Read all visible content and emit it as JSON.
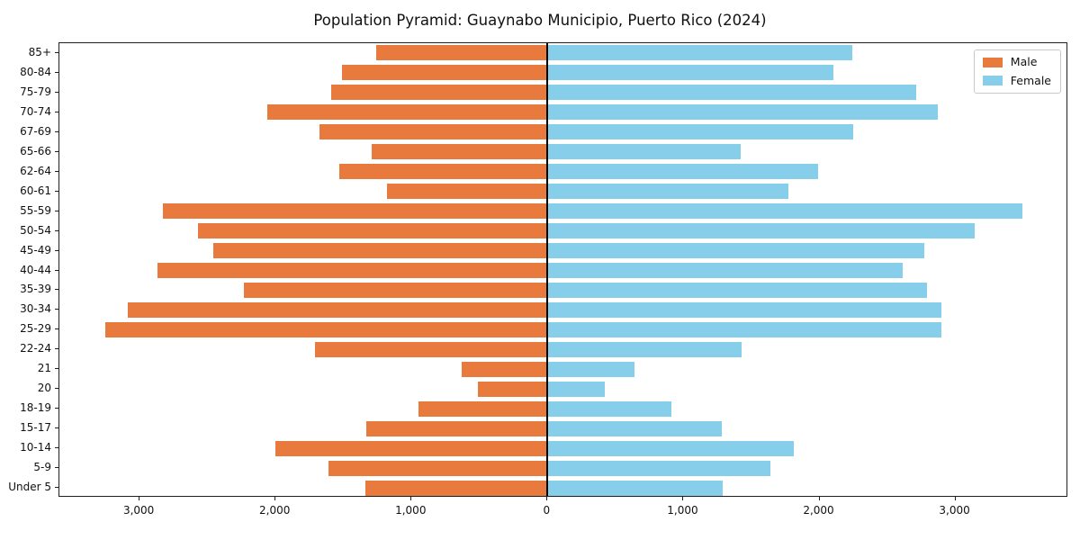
{
  "title": "Population Pyramid: Guaynabo Municipio, Puerto Rico (2024)",
  "colors": {
    "male": "#E87A3D",
    "female": "#87CEEB",
    "zero_line": "#000000",
    "spine": "#1f1f1f"
  },
  "legend": {
    "position": "upper right",
    "items": [
      "Male",
      "Female"
    ]
  },
  "chart_data": {
    "type": "bar",
    "subtype": "population-pyramid",
    "orientation": "horizontal",
    "title": "Population Pyramid: Guaynabo Municipio, Puerto Rico (2024)",
    "categories_top_to_bottom": [
      "85+",
      "80-84",
      "75-79",
      "70-74",
      "67-69",
      "65-66",
      "62-64",
      "60-61",
      "55-59",
      "50-54",
      "45-49",
      "40-44",
      "35-39",
      "30-34",
      "25-29",
      "22-24",
      "21",
      "20",
      "18-19",
      "15-17",
      "10-14",
      "5-9",
      "Under 5"
    ],
    "series": [
      {
        "name": "Male",
        "side": "left",
        "color": "#E87A3D",
        "values": [
          1260,
          1510,
          1590,
          2060,
          1680,
          1290,
          1530,
          1180,
          2830,
          2570,
          2460,
          2870,
          2230,
          3090,
          3250,
          1710,
          630,
          510,
          950,
          1330,
          2000,
          1610,
          1340
        ]
      },
      {
        "name": "Female",
        "side": "right",
        "color": "#87CEEB",
        "values": [
          2240,
          2100,
          2710,
          2870,
          2250,
          1420,
          1990,
          1770,
          3490,
          3140,
          2770,
          2610,
          2790,
          2900,
          2900,
          1430,
          640,
          420,
          910,
          1280,
          1810,
          1640,
          1290
        ]
      }
    ],
    "x_ticks": {
      "values": [
        -3000,
        -2000,
        -1000,
        0,
        1000,
        2000,
        3000
      ],
      "labels": [
        "3,000",
        "2,000",
        "1,000",
        "0",
        "1,000",
        "2,000",
        "3,000"
      ]
    },
    "xlim": [
      -3590,
      3830
    ],
    "grid": false,
    "legend_position": "upper right",
    "xlabel": "",
    "ylabel": ""
  }
}
